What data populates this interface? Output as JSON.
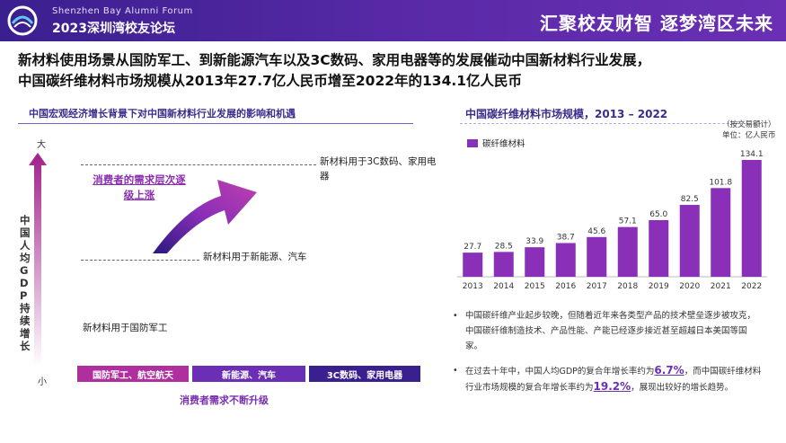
{
  "header": {
    "forum_en": "Shenzhen  Bay Alumni Forum",
    "forum_cn": "2023深圳湾校友论坛",
    "slogan": "汇聚校友财智   逐梦湾区未来"
  },
  "headline": {
    "line1": "新材料使用场景从国防军工、到新能源汽车以及3C数码、家用电器等的发展催动中国新材料行业发展，",
    "line2": "中国碳纤维材料市场规模从2013年27.7亿人民币增至2022年的134.1亿人民币"
  },
  "left_panel": {
    "title": "中国宏观经济增长背景下对中国新材料行业发展的影响和机遇",
    "axis_top": "大",
    "axis_bottom": "小",
    "gdp_label": "中国人均GDP持续增长",
    "demand_label": "消费者的需求层次逐级上涨",
    "levels": [
      "新材料用于3C数码、家用电器",
      "新材料用于新能源、汽车",
      "新材料用于国防军工"
    ],
    "segments": [
      "国防军工、航空航天",
      "新能源、汽车",
      "3C数码、家用电器"
    ],
    "consumer_label": "消费者需求不断升级"
  },
  "right_panel": {
    "title": "中国碳纤维材料市场规模，2013 – 2022",
    "note_line1": "（按交易额计）",
    "note_line2": "单位：亿人民币",
    "bullets": [
      {
        "text": "中国碳纤维产业起步较晚，但随着近年来各类型产品的技术壁垒逐步被攻克，中国碳纤维制造技术、产品性能、产能已经逐步接近甚至超越日本美国等国家。"
      },
      {
        "pre": "在过去十年中，中国人均GDP的复合年增长率约为",
        "hl1": "6.7%",
        "mid": "，而中国碳纤维材料行业市场规模的复合年增长率约为",
        "hl2": "19.2%",
        "post": "，展现出较好的增长趋势。"
      }
    ]
  },
  "colors": {
    "header": "#3a1f8f",
    "bar": "#8a2fb8",
    "accent": "#6a2fb4"
  },
  "chart_data": {
    "type": "bar",
    "categories": [
      "2013",
      "2014",
      "2015",
      "2016",
      "2017",
      "2018",
      "2019",
      "2020",
      "2021",
      "2022"
    ],
    "series": [
      {
        "name": "碳纤维材料",
        "values": [
          27.7,
          28.5,
          33.9,
          38.7,
          45.6,
          57.1,
          65.0,
          82.5,
          101.8,
          134.1
        ]
      }
    ],
    "value_labels": [
      "27.7",
      "28.5",
      "33.9",
      "38.7",
      "45.6",
      "57.1",
      "65.0",
      "82.5",
      "101.8",
      "134.1"
    ],
    "ylim": [
      0,
      134.1
    ],
    "grid": false,
    "legend": "top-left"
  }
}
